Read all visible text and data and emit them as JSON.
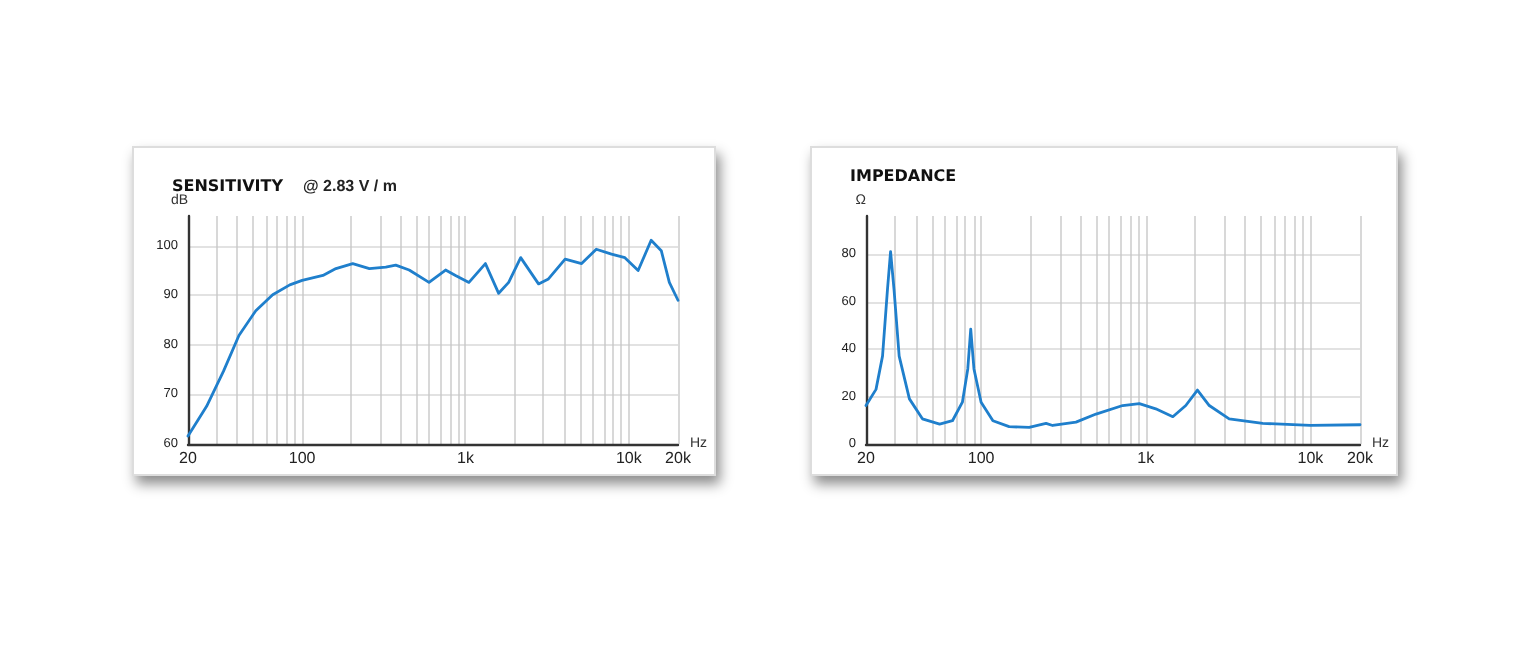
{
  "chart_data": [
    {
      "type": "line",
      "title": "SENSITIVITY",
      "subtitle": "@ 2.83 V / m",
      "xlabel": "Hz",
      "ylabel": "dB",
      "log": "x",
      "grid": true,
      "marker": "none",
      "line_style": "solid",
      "xlim": [
        20,
        20000
      ],
      "ylim": [
        60,
        106
      ],
      "yticks": [
        60,
        70,
        80,
        90,
        100
      ],
      "xticks": [
        {
          "value": 20,
          "label": "20"
        },
        {
          "value": 30,
          "label": null
        },
        {
          "value": 40,
          "label": null
        },
        {
          "value": 50,
          "label": null
        },
        {
          "value": 60,
          "label": null
        },
        {
          "value": 70,
          "label": null
        },
        {
          "value": 80,
          "label": null
        },
        {
          "value": 90,
          "label": null
        },
        {
          "value": 100,
          "label": "100"
        },
        {
          "value": 200,
          "label": null
        },
        {
          "value": 300,
          "label": null
        },
        {
          "value": 400,
          "label": null
        },
        {
          "value": 500,
          "label": null
        },
        {
          "value": 600,
          "label": null
        },
        {
          "value": 700,
          "label": null
        },
        {
          "value": 800,
          "label": null
        },
        {
          "value": 900,
          "label": null
        },
        {
          "value": 1000,
          "label": "1k"
        },
        {
          "value": 2000,
          "label": null
        },
        {
          "value": 3000,
          "label": null
        },
        {
          "value": 4000,
          "label": null
        },
        {
          "value": 5000,
          "label": null
        },
        {
          "value": 6000,
          "label": null
        },
        {
          "value": 7000,
          "label": null
        },
        {
          "value": 8000,
          "label": null
        },
        {
          "value": 9000,
          "label": null
        },
        {
          "value": 10000,
          "label": "10k"
        },
        {
          "value": 20000,
          "label": "20k"
        }
      ],
      "series": [
        {
          "color": "#1f7fcc",
          "x": [
            20,
            26,
            33,
            41,
            52,
            66,
            84,
            100,
            134,
            161,
            204,
            258,
            325,
            374,
            452,
            598,
            755,
            869,
            1050,
            1324,
            1596,
            1838,
            2177,
            2800,
            3220,
            4074,
            5140,
            6320,
            7830,
            9460,
            11400,
            13700,
            15800,
            17700,
            20000
          ],
          "values": [
            61.6,
            67.6,
            74.7,
            81.9,
            86.9,
            90.1,
            92.1,
            93,
            94,
            95.4,
            96.4,
            95.4,
            95.7,
            96.1,
            95.1,
            92.6,
            95.1,
            94,
            92.6,
            96.4,
            90.4,
            92.6,
            97.6,
            92.3,
            93.3,
            97.3,
            96.4,
            99.3,
            98.3,
            97.6,
            95,
            101.1,
            99,
            92.6,
            89
          ]
        }
      ]
    },
    {
      "type": "line",
      "title": "IMPEDANCE",
      "xlabel": "Hz",
      "ylabel": "Ω",
      "log": "x",
      "grid": true,
      "marker": "none",
      "line_style": "solid",
      "xlim": [
        20,
        20000
      ],
      "ylim": [
        0,
        96
      ],
      "yticks": [
        0,
        20,
        40,
        60,
        80
      ],
      "xticks": [
        {
          "value": 20,
          "label": "20"
        },
        {
          "value": 30,
          "label": null
        },
        {
          "value": 40,
          "label": null
        },
        {
          "value": 50,
          "label": null
        },
        {
          "value": 60,
          "label": null
        },
        {
          "value": 70,
          "label": null
        },
        {
          "value": 80,
          "label": null
        },
        {
          "value": 90,
          "label": null
        },
        {
          "value": 100,
          "label": "100"
        },
        {
          "value": 200,
          "label": null
        },
        {
          "value": 300,
          "label": null
        },
        {
          "value": 400,
          "label": null
        },
        {
          "value": 500,
          "label": null
        },
        {
          "value": 600,
          "label": null
        },
        {
          "value": 700,
          "label": null
        },
        {
          "value": 800,
          "label": null
        },
        {
          "value": 900,
          "label": null
        },
        {
          "value": 1000,
          "label": "1k"
        },
        {
          "value": 2000,
          "label": null
        },
        {
          "value": 3000,
          "label": null
        },
        {
          "value": 4000,
          "label": null
        },
        {
          "value": 5000,
          "label": null
        },
        {
          "value": 6000,
          "label": null
        },
        {
          "value": 7000,
          "label": null
        },
        {
          "value": 8000,
          "label": null
        },
        {
          "value": 9000,
          "label": null
        },
        {
          "value": 10000,
          "label": "10k"
        },
        {
          "value": 20000,
          "label": "20k"
        }
      ],
      "series": [
        {
          "color": "#1f7fcc",
          "x": [
            20,
            23,
            25.2,
            27,
            28.2,
            29.6,
            31.8,
            36.7,
            44,
            56,
            67,
            77,
            83,
            86.5,
            90.5,
            100,
            118,
            148,
            196,
            237,
            248,
            272,
            377,
            499,
            724,
            914,
            1150,
            1460,
            1750,
            2060,
            2430,
            3210,
            5130,
            10000,
            20000
          ],
          "values": [
            16.2,
            23,
            37,
            65,
            81,
            65,
            37,
            19,
            10.6,
            8.4,
            9.8,
            17.6,
            31.6,
            48.4,
            31.6,
            17.6,
            9.8,
            7.3,
            7,
            8.4,
            8.7,
            7.8,
            9.2,
            12.6,
            16.2,
            17,
            14.8,
            11.5,
            16.2,
            22.7,
            16.2,
            10.6,
            8.7,
            7.8,
            8.1
          ]
        }
      ]
    }
  ]
}
